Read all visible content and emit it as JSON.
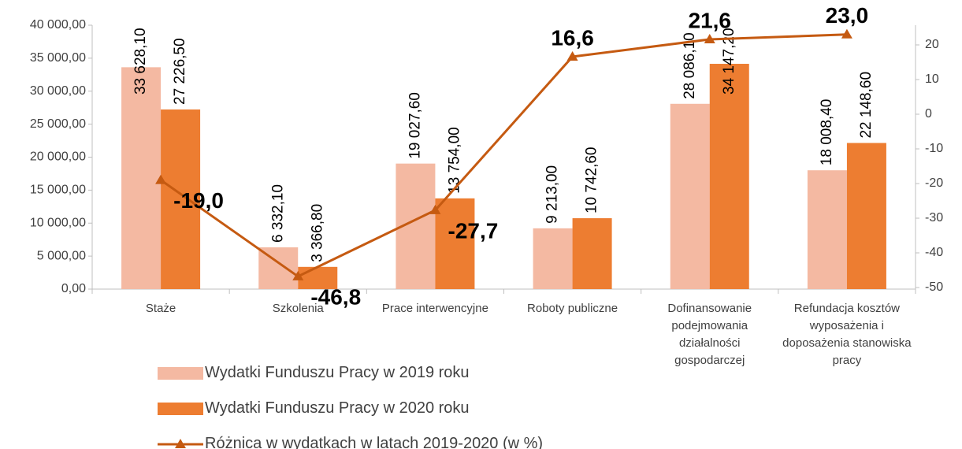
{
  "chart_data": {
    "type": "bar",
    "categories": [
      "Staże",
      "Szkolenia",
      "Prace interwencyjne",
      "Roboty publiczne",
      "Dofinansowanie podejmowania działalności gospodarczej",
      "Refundacja kosztów wyposażenia i doposażenia stanowiska pracy"
    ],
    "series": [
      {
        "name": "Wydatki Funduszu Pracy w 2019 roku",
        "type": "bar",
        "color": "#f4b9a2",
        "values": [
          33628.1,
          6332.1,
          19027.6,
          9213.0,
          28086.1,
          18008.4
        ],
        "value_labels": [
          "33 628,10",
          "6 332,10",
          "19 027,60",
          "9 213,00",
          "28 086,10",
          "18 008,40"
        ]
      },
      {
        "name": "Wydatki Funduszu Pracy w 2020 roku",
        "type": "bar",
        "color": "#ed7d31",
        "values": [
          27226.5,
          3366.8,
          13754.0,
          10742.6,
          34147.2,
          22148.6
        ],
        "value_labels": [
          "27 226,50",
          "3 366,80",
          "13 754,00",
          "10 742,60",
          "34 147,20",
          "22 148,60"
        ]
      },
      {
        "name": "Różnica w wydatkach w latach 2019-2020 (w %)",
        "type": "line",
        "axis": "y2",
        "color": "#c55a11",
        "values": [
          -19.0,
          -46.8,
          -27.7,
          16.6,
          21.6,
          23.0
        ],
        "value_labels": [
          "-19,0",
          "-46,8",
          "-27,7",
          "16,6",
          "21,6",
          "23,0"
        ]
      }
    ],
    "ylim": [
      0,
      40000
    ],
    "yticks": [
      {
        "value": 0,
        "label": "0,00"
      },
      {
        "value": 5000,
        "label": "5 000,00"
      },
      {
        "value": 10000,
        "label": "10 000,00"
      },
      {
        "value": 15000,
        "label": "15 000,00"
      },
      {
        "value": 20000,
        "label": "20 000,00"
      },
      {
        "value": 25000,
        "label": "25 000,00"
      },
      {
        "value": 30000,
        "label": "30 000,00"
      },
      {
        "value": 35000,
        "label": "35 000,00"
      },
      {
        "value": 40000,
        "label": "40 000,00"
      }
    ],
    "y2lim": [
      -50,
      20
    ],
    "y2ticks": [
      -50,
      -40,
      -30,
      -20,
      -10,
      0,
      10,
      20
    ],
    "grid": false,
    "legend": "bottom-left"
  }
}
